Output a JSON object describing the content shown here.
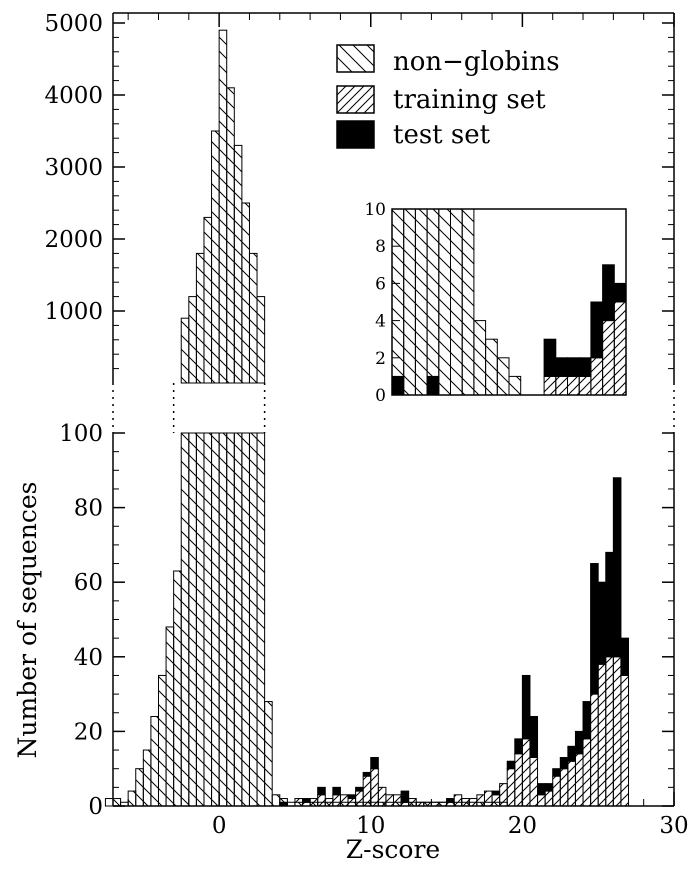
{
  "chart_data": {
    "type": "bar",
    "xlabel": "Z-score",
    "ylabel": "Number of sequences",
    "xlim": [
      -7,
      30
    ],
    "x_ticks": [
      "0",
      "10",
      "20",
      "30"
    ],
    "y_ticks_lower": [
      "0",
      "20",
      "40",
      "60",
      "80",
      "100"
    ],
    "y_ticks_upper": [
      "1000",
      "2000",
      "3000",
      "4000",
      "5000"
    ],
    "axis_break": {
      "lower_ylim": [
        0,
        100
      ],
      "upper_ylim": [
        0,
        5000
      ]
    },
    "bin_width": 0.5,
    "legend": [
      {
        "label": "non−globins",
        "pattern": "hatch-backslash"
      },
      {
        "label": "training set",
        "pattern": "hatch-slash"
      },
      {
        "label": "test set",
        "pattern": "solid-black"
      }
    ],
    "series": [
      {
        "name": "non−globins",
        "bins": [
          [
            -7.5,
            2
          ],
          [
            -7,
            2
          ],
          [
            -6.5,
            1
          ],
          [
            -6,
            4
          ],
          [
            -5.5,
            10
          ],
          [
            -5,
            15
          ],
          [
            -4.5,
            24
          ],
          [
            -4,
            35
          ],
          [
            -3.5,
            48
          ],
          [
            -3,
            63
          ],
          [
            -2.5,
            900
          ],
          [
            -2,
            1200
          ],
          [
            -1.5,
            1800
          ],
          [
            -1,
            2300
          ],
          [
            -0.5,
            3500
          ],
          [
            0,
            4900
          ],
          [
            0.5,
            4100
          ],
          [
            1,
            3300
          ],
          [
            1.5,
            2500
          ],
          [
            2,
            1800
          ],
          [
            2.5,
            1200
          ],
          [
            3,
            28
          ],
          [
            3.5,
            3
          ],
          [
            4,
            2
          ],
          [
            4.5,
            1
          ],
          [
            5,
            1
          ],
          [
            5.5,
            1
          ],
          [
            6,
            1
          ],
          [
            6.5,
            1
          ],
          [
            7,
            1
          ],
          [
            7.5,
            1
          ],
          [
            8,
            1
          ],
          [
            8.5,
            1
          ],
          [
            9,
            1
          ],
          [
            9.5,
            1
          ],
          [
            10,
            1
          ],
          [
            10.5,
            1
          ],
          [
            11,
            1
          ],
          [
            11.5,
            1
          ],
          [
            12,
            1
          ],
          [
            12.5,
            1
          ],
          [
            13,
            1
          ],
          [
            13.5,
            1
          ],
          [
            14,
            1
          ],
          [
            14.5,
            1
          ],
          [
            15,
            1
          ],
          [
            15.5,
            1
          ],
          [
            16,
            1
          ],
          [
            16.5,
            1
          ],
          [
            17,
            1
          ],
          [
            17.5,
            1
          ],
          [
            18,
            1
          ],
          [
            18.5,
            1
          ]
        ]
      },
      {
        "name": "training set",
        "bins": [
          [
            5,
            2
          ],
          [
            5.5,
            1
          ],
          [
            6,
            2
          ],
          [
            6.5,
            3
          ],
          [
            7,
            2
          ],
          [
            7.5,
            3
          ],
          [
            8,
            3
          ],
          [
            8.5,
            2
          ],
          [
            9,
            4
          ],
          [
            9.5,
            8
          ],
          [
            10,
            10
          ],
          [
            10.5,
            5
          ],
          [
            11,
            3
          ],
          [
            11.5,
            3
          ],
          [
            12,
            1
          ],
          [
            12.5,
            2
          ],
          [
            13,
            1
          ],
          [
            13.5,
            1
          ],
          [
            14,
            1
          ],
          [
            14.5,
            1
          ],
          [
            15,
            1
          ],
          [
            15.5,
            3
          ],
          [
            16,
            2
          ],
          [
            16.5,
            2
          ],
          [
            17,
            3
          ],
          [
            17.5,
            4
          ],
          [
            18,
            3
          ],
          [
            18.5,
            6
          ],
          [
            19,
            10
          ],
          [
            19.5,
            14
          ],
          [
            20,
            18
          ],
          [
            20.5,
            13
          ],
          [
            21,
            3
          ],
          [
            21.5,
            4
          ],
          [
            22,
            8
          ],
          [
            22.5,
            10
          ],
          [
            23,
            12
          ],
          [
            23.5,
            14
          ],
          [
            24,
            18
          ],
          [
            24.5,
            30
          ],
          [
            25,
            38
          ],
          [
            25.5,
            40
          ],
          [
            26,
            40
          ],
          [
            26.5,
            35
          ]
        ]
      },
      {
        "name": "test set",
        "bins": [
          [
            4,
            1
          ],
          [
            5.5,
            1
          ],
          [
            6.5,
            2
          ],
          [
            7.5,
            2
          ],
          [
            8.5,
            1
          ],
          [
            9,
            1
          ],
          [
            9.5,
            1
          ],
          [
            10,
            3
          ],
          [
            12,
            3
          ],
          [
            15,
            1
          ],
          [
            18,
            1
          ],
          [
            19,
            2
          ],
          [
            19.5,
            4
          ],
          [
            20,
            17
          ],
          [
            20.5,
            11
          ],
          [
            21,
            3
          ],
          [
            21.5,
            2
          ],
          [
            22,
            2
          ],
          [
            22.5,
            3
          ],
          [
            23,
            4
          ],
          [
            23.5,
            6
          ],
          [
            24,
            10
          ],
          [
            24.5,
            35
          ],
          [
            25,
            22
          ],
          [
            25.5,
            28
          ],
          [
            26,
            48
          ],
          [
            26.5,
            10
          ]
        ]
      }
    ],
    "inset": {
      "ylim": [
        0,
        10
      ],
      "y_ticks": [
        "0",
        "2",
        "4",
        "6",
        "8",
        "10"
      ],
      "xlim": [
        -0.5,
        9.5
      ],
      "bins_nonglobin": [
        10,
        10,
        10,
        10,
        10,
        10,
        10,
        4,
        3,
        2,
        1,
        0,
        0,
        0,
        0,
        0,
        0,
        0,
        0,
        0
      ],
      "bins_training": [
        0,
        0,
        0,
        0,
        0,
        0,
        0,
        0,
        0,
        0,
        0,
        0,
        0,
        1,
        1,
        1,
        1,
        2,
        4,
        5
      ],
      "bins_test": [
        1,
        0,
        0,
        1,
        0,
        0,
        0,
        0,
        0,
        0,
        0,
        0,
        0,
        2,
        1,
        1,
        1,
        3,
        3,
        1
      ]
    }
  }
}
